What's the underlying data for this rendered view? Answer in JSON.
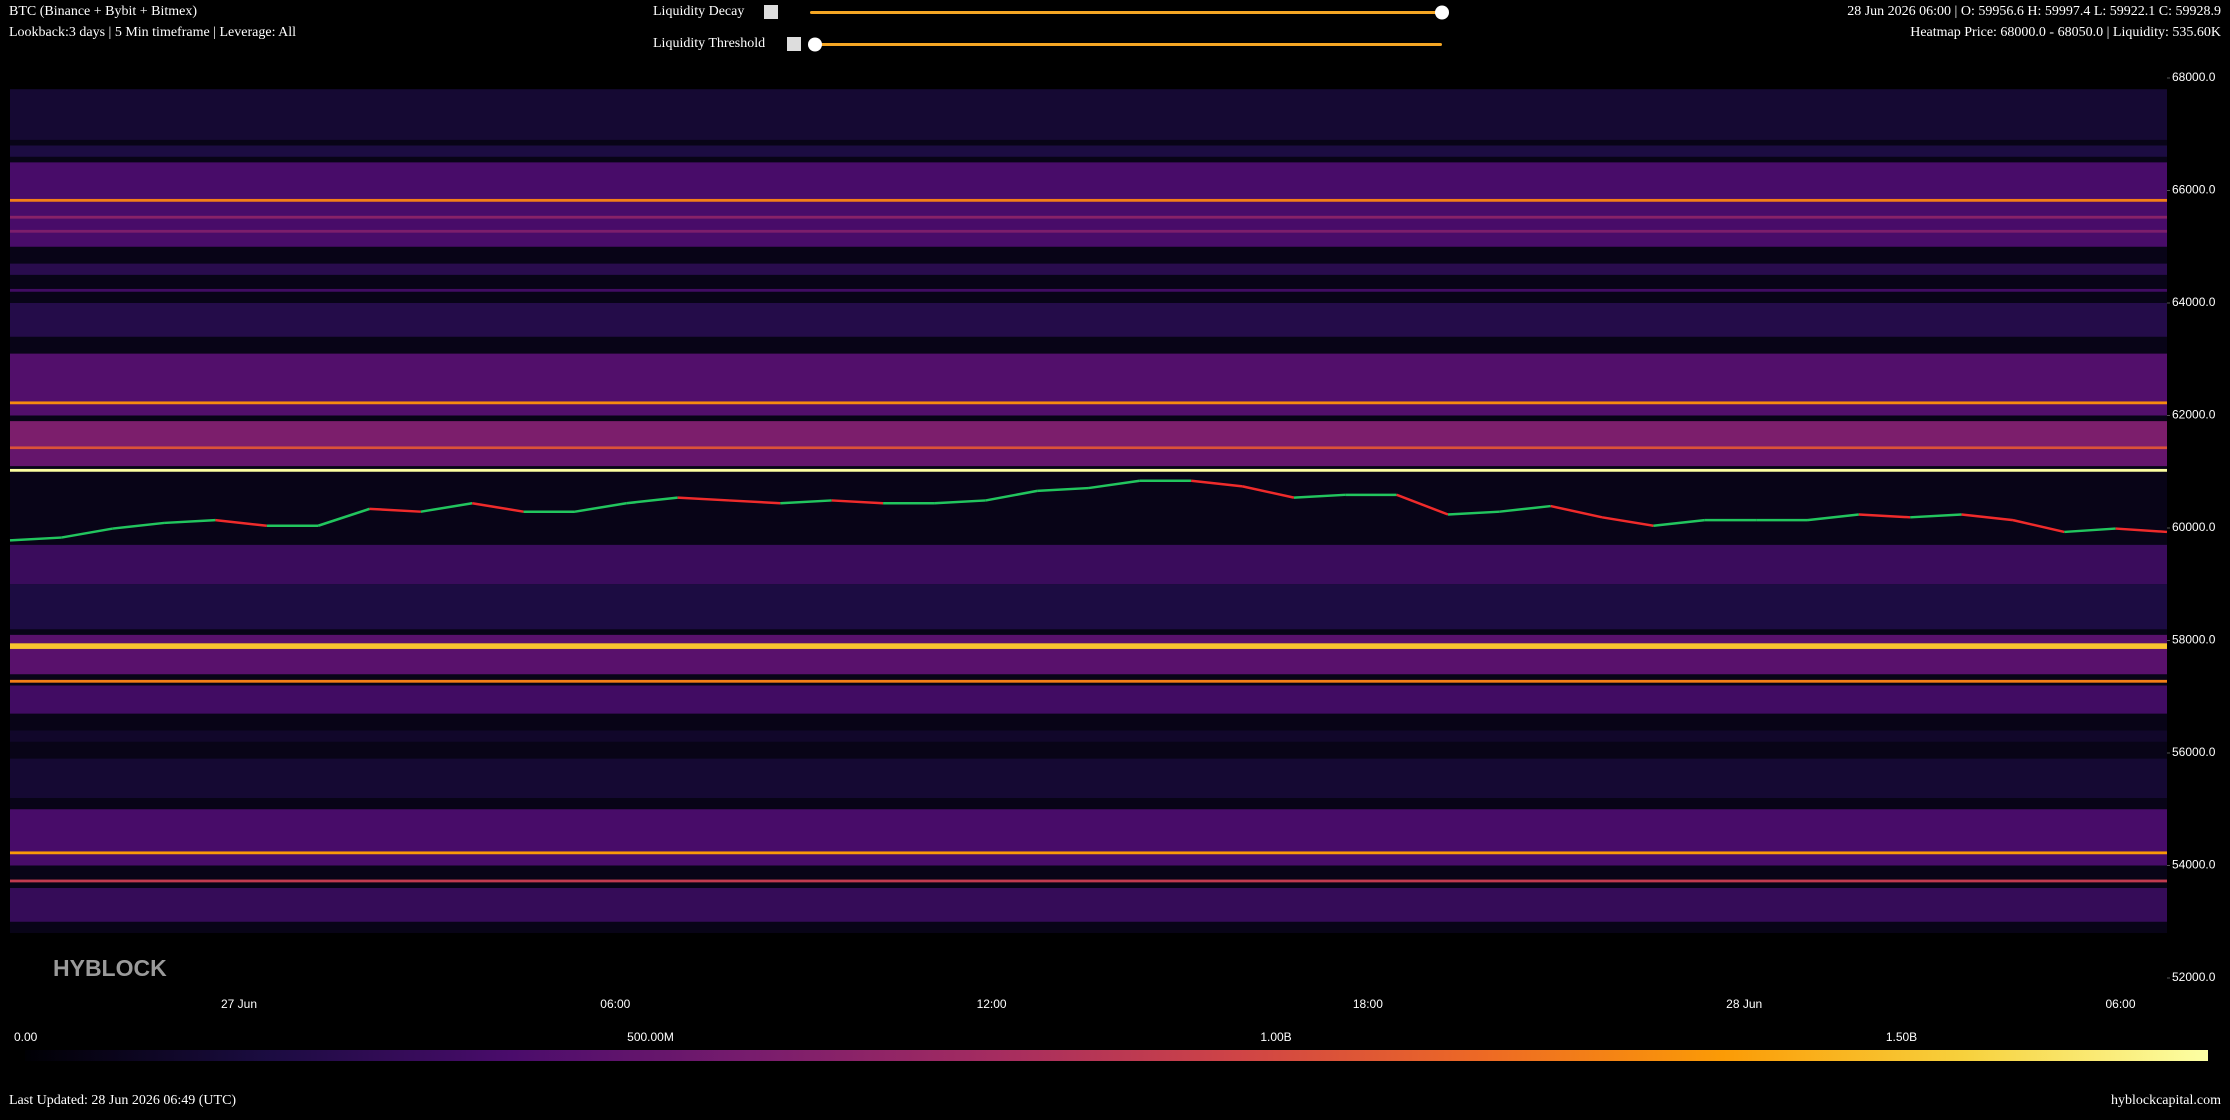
{
  "header": {
    "title": "BTC (Binance + Bybit + Bitmex)",
    "subtitle": "Lookback:3 days | 5 Min timeframe | Leverage: All",
    "slider_decay_label": "Liquidity Decay",
    "slider_threshold_label": "Liquidity Threshold",
    "ohlc": "28 Jun 2026 06:00 | O: 59956.6 H: 59997.4 L: 59922.1 C: 59928.9",
    "hover": "Heatmap Price: 68000.0 - 68050.0 | Liquidity: 535.60K"
  },
  "chart_data": {
    "type": "heatmap",
    "watermark": "HYBLOCK",
    "ylim": [
      52000,
      68000
    ],
    "yticks": [
      {
        "value": 52000,
        "label": "52000.0"
      },
      {
        "value": 54000,
        "label": "54000.0"
      },
      {
        "value": 56000,
        "label": "56000.0"
      },
      {
        "value": 58000,
        "label": "58000.0"
      },
      {
        "value": 60000,
        "label": "60000.0"
      },
      {
        "value": 62000,
        "label": "62000.0"
      },
      {
        "value": 64000,
        "label": "64000.0"
      },
      {
        "value": 66000,
        "label": "66000.0"
      },
      {
        "value": 68000,
        "label": "68000.0"
      }
    ],
    "xticks": [
      "27 Jun",
      "06:00",
      "12:00",
      "18:00",
      "28 Jun",
      "06:00"
    ],
    "clim": [
      0,
      1745000000
    ],
    "cticks": [
      {
        "value": 0,
        "label": "0.00"
      },
      {
        "value": 500000000,
        "label": "500.00M"
      },
      {
        "value": 1000000000,
        "label": "1.00B"
      },
      {
        "value": 1500000000,
        "label": "1.50B"
      }
    ],
    "colorscale": [
      "#000004",
      "#1b0c41",
      "#4a0c6b",
      "#781c6d",
      "#a52c60",
      "#cf4446",
      "#ed6925",
      "#fb9b06",
      "#f7d13d",
      "#fcffa4"
    ],
    "bands": {
      "low": [
        52800,
        66900,
        66600,
        65000,
        65800,
        65500,
        65250,
        64500,
        64200,
        63400,
        62000,
        62200,
        61400,
        61400,
        61100,
        61000,
        59000,
        58200,
        57400,
        57850,
        57250,
        56700,
        56200,
        55200,
        54000,
        54200,
        53700,
        53000
      ],
      "high": [
        67800,
        67800,
        66800,
        66500,
        65850,
        65550,
        65300,
        64700,
        64250,
        64000,
        63100,
        62250,
        61900,
        61450,
        61400,
        61050,
        59700,
        59000,
        58100,
        57950,
        57300,
        57200,
        56400,
        55900,
        55000,
        54250,
        53750,
        53600
      ],
      "liquidity": [
        60000000,
        150000000,
        200000000,
        380000000,
        1250000000,
        650000000,
        600000000,
        250000000,
        350000000,
        230000000,
        420000000,
        1300000000,
        600000000,
        1050000000,
        500000000,
        1740000000,
        320000000,
        200000000,
        450000000,
        1500000000,
        1250000000,
        350000000,
        120000000,
        150000000,
        380000000,
        1350000000,
        900000000,
        300000000
      ]
    },
    "price": {
      "up_color": "#22c55e",
      "down_color": "#ef2b2b",
      "values": [
        59780,
        59830,
        59990,
        60090,
        60140,
        60040,
        60040,
        60340,
        60290,
        60440,
        60290,
        60290,
        60440,
        60540,
        60490,
        60440,
        60490,
        60440,
        60440,
        60490,
        60660,
        60710,
        60840,
        60840,
        60740,
        60540,
        60590,
        60590,
        60240,
        60290,
        60390,
        60190,
        60040,
        60140,
        60140,
        60140,
        60240,
        60190,
        60240,
        60140,
        59930,
        59990,
        59930
      ]
    }
  },
  "footer": {
    "updated": "Last Updated: 28 Jun 2026 06:49 (UTC)",
    "site": "hyblockcapital.com"
  }
}
